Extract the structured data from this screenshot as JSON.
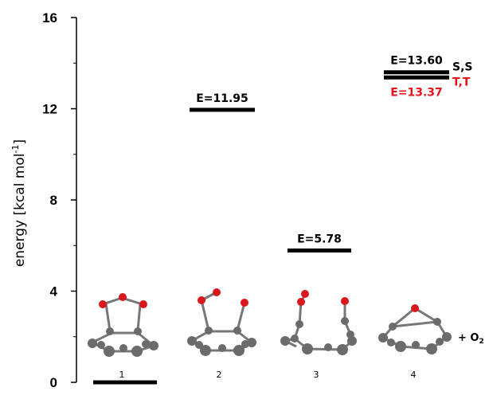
{
  "chart_data": {
    "type": "energy-level-diagram",
    "ylabel": {
      "main": "energy [kcal mol",
      "sup": "-1",
      "close": "]"
    },
    "ylim": [
      0,
      16
    ],
    "yticks": [
      0,
      4,
      8,
      12,
      16
    ],
    "yticks_minor": [
      2,
      6,
      10,
      14
    ],
    "grid": false,
    "states": [
      {
        "id": "1",
        "label": "1",
        "levels": [
          {
            "energy": 0.0,
            "color": "#000000"
          }
        ]
      },
      {
        "id": "2",
        "label": "2",
        "levels": [
          {
            "energy": 11.95,
            "text": "E=11.95",
            "color": "#000000",
            "text_pos": "above"
          }
        ]
      },
      {
        "id": "3",
        "label": "3",
        "levels": [
          {
            "energy": 5.78,
            "text": "E=5.78",
            "color": "#000000",
            "text_pos": "above"
          }
        ]
      },
      {
        "id": "4",
        "label": "4",
        "levels": [
          {
            "energy": 13.6,
            "text": "E=13.60",
            "color": "#000000",
            "text_pos": "above",
            "spin": "S,S",
            "spin_color": "#000000"
          },
          {
            "energy": 13.37,
            "text": "E=13.37",
            "color": "#000000",
            "text_color": "#e8141b",
            "text_pos": "below",
            "spin": "T,T",
            "spin_color": "#e8141b"
          }
        ]
      }
    ],
    "extra_label": {
      "plus": "+ O",
      "sub": "2"
    }
  },
  "colors": {
    "carbon": "#6b6b6b",
    "oxygen": "#d9171c",
    "red_text": "#e8141b"
  }
}
